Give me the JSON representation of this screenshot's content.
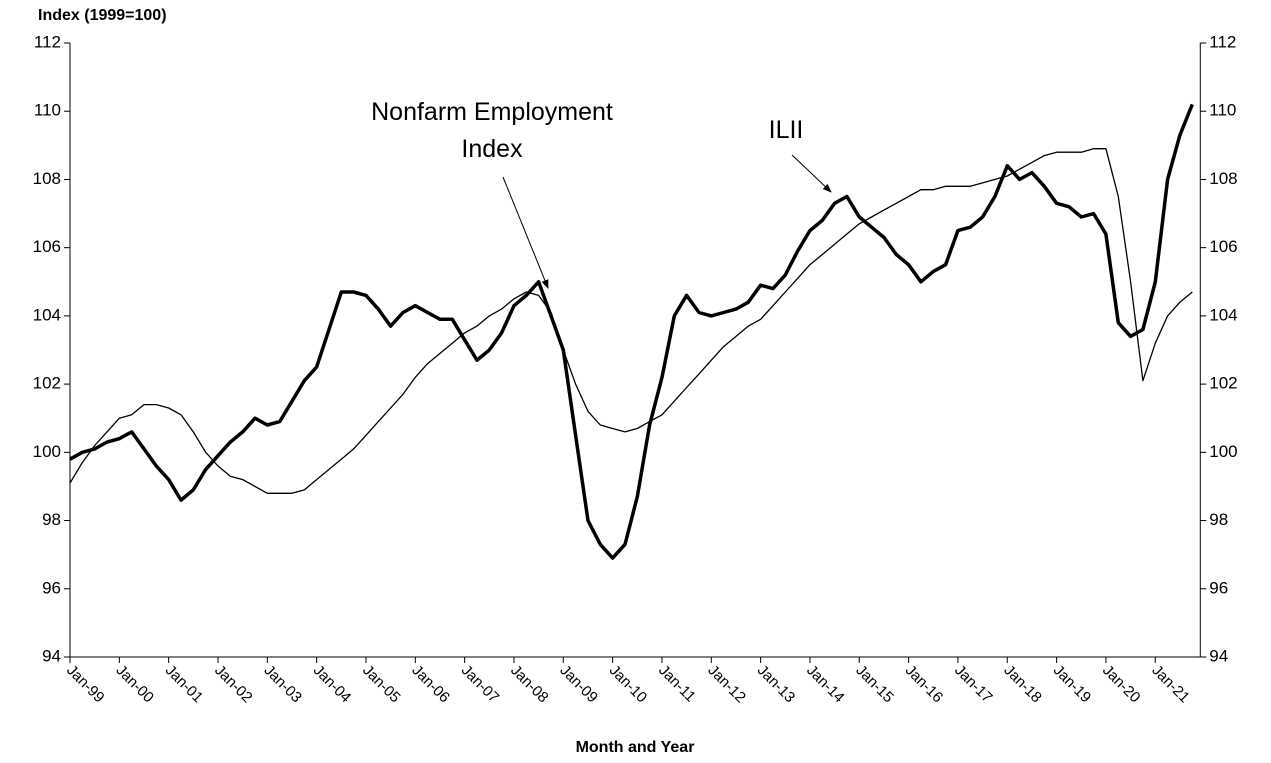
{
  "chart_data": {
    "type": "line",
    "y_axis_title": "Index (1999=100)",
    "x_axis_title": "Month and Year",
    "categories": [
      "Jan-99",
      null,
      null,
      null,
      "Jan-00",
      null,
      null,
      null,
      "Jan-01",
      null,
      null,
      null,
      "Jan-02",
      null,
      null,
      null,
      "Jan-03",
      null,
      null,
      null,
      "Jan-04",
      null,
      null,
      null,
      "Jan-05",
      null,
      null,
      null,
      "Jan-06",
      null,
      null,
      null,
      "Jan-07",
      null,
      null,
      null,
      "Jan-08",
      null,
      null,
      null,
      "Jan-09",
      null,
      null,
      null,
      "Jan-10",
      null,
      null,
      null,
      "Jan-11",
      null,
      null,
      null,
      "Jan-12",
      null,
      null,
      null,
      "Jan-13",
      null,
      null,
      null,
      "Jan-14",
      null,
      null,
      null,
      "Jan-15",
      null,
      null,
      null,
      "Jan-16",
      null,
      null,
      null,
      "Jan-17",
      null,
      null,
      null,
      "Jan-18",
      null,
      null,
      null,
      "Jan-19",
      null,
      null,
      null,
      "Jan-20",
      null,
      null,
      null,
      "Jan-21",
      null,
      null,
      null
    ],
    "series": [
      {
        "color": "#000000",
        "width": "thick",
        "values": [
          99.8,
          100.0,
          100.1,
          100.3,
          100.4,
          100.6,
          100.1,
          99.6,
          99.2,
          98.6,
          98.9,
          99.5,
          99.9,
          100.3,
          100.6,
          101.0,
          100.8,
          100.9,
          101.5,
          102.1,
          102.5,
          103.6,
          104.7,
          104.7,
          104.6,
          104.2,
          103.7,
          104.1,
          104.3,
          104.1,
          103.9,
          103.9,
          103.3,
          102.7,
          103.0,
          103.5,
          104.3,
          104.6,
          105.0,
          104.0,
          103.0,
          100.5,
          98.0,
          97.3,
          96.9,
          97.3,
          98.7,
          100.8,
          102.2,
          104.0,
          104.6,
          104.1,
          104.0,
          104.1,
          104.2,
          104.4,
          104.9,
          104.8,
          105.2,
          105.9,
          106.5,
          106.8,
          107.3,
          107.5,
          106.9,
          106.6,
          106.3,
          105.8,
          105.5,
          105.0,
          105.3,
          105.5,
          106.5,
          106.6,
          106.9,
          107.5,
          108.4,
          108.0,
          108.2,
          107.8,
          107.3,
          107.2,
          106.9,
          107.0,
          106.4,
          103.8,
          103.4,
          103.6,
          105.0,
          108.0,
          109.3,
          110.2
        ]
      },
      {
        "color": "#000000",
        "width": "thin",
        "values": [
          99.1,
          99.7,
          100.2,
          100.6,
          101.0,
          101.1,
          101.4,
          101.4,
          101.3,
          101.1,
          100.6,
          100.0,
          99.6,
          99.3,
          99.2,
          99.0,
          98.8,
          98.8,
          98.8,
          98.9,
          99.2,
          99.5,
          99.8,
          100.1,
          100.5,
          100.9,
          101.3,
          101.7,
          102.2,
          102.6,
          102.9,
          103.2,
          103.5,
          103.7,
          104.0,
          104.2,
          104.5,
          104.7,
          104.6,
          104.1,
          103.0,
          102.0,
          101.2,
          100.8,
          100.7,
          100.6,
          100.7,
          100.9,
          101.1,
          101.5,
          101.9,
          102.3,
          102.7,
          103.1,
          103.4,
          103.7,
          103.9,
          104.3,
          104.7,
          105.1,
          105.5,
          105.8,
          106.1,
          106.4,
          106.7,
          106.9,
          107.1,
          107.3,
          107.5,
          107.7,
          107.7,
          107.8,
          107.8,
          107.8,
          107.9,
          108.0,
          108.1,
          108.3,
          108.5,
          108.7,
          108.8,
          108.8,
          108.8,
          108.9,
          108.9,
          107.5,
          105.0,
          102.1,
          103.2,
          104.0,
          104.4,
          104.7
        ]
      }
    ],
    "annotations": [
      {
        "text": [
          "Nonfarm Employment",
          "Index"
        ]
      },
      {
        "text": [
          "ILII"
        ]
      }
    ],
    "ylim": [
      94,
      112
    ],
    "yticks": [
      94,
      96,
      98,
      100,
      102,
      104,
      106,
      108,
      110,
      112
    ],
    "y2lim": [
      94,
      112
    ],
    "y2ticks": [
      94,
      96,
      98,
      100,
      102,
      104,
      106,
      108,
      110,
      112
    ],
    "grid": false
  }
}
